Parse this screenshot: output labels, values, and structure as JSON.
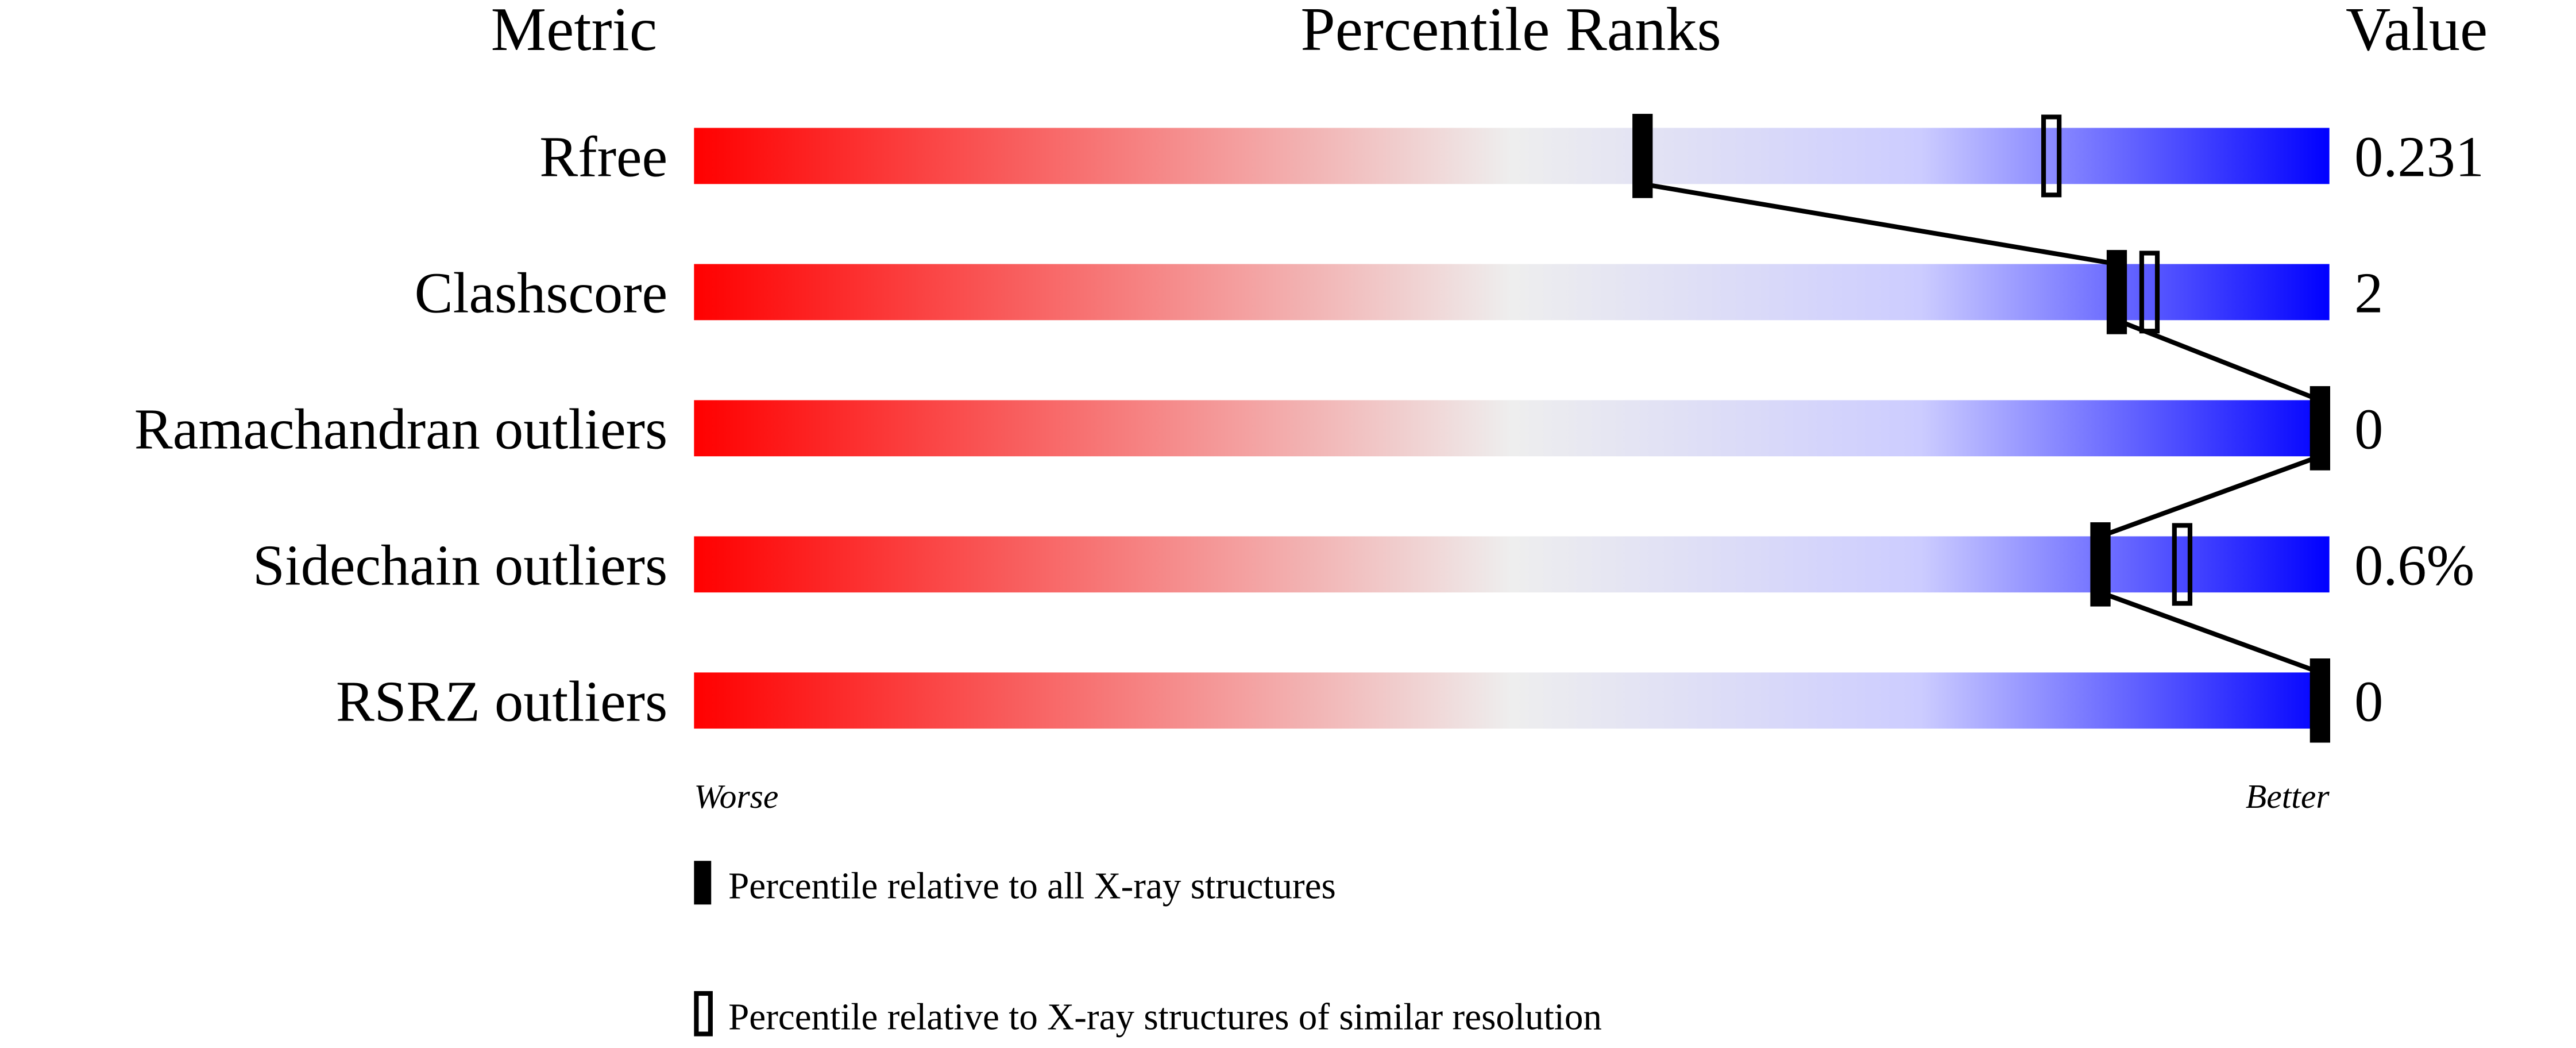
{
  "chart_data": {
    "type": "percentile-bar",
    "headers": {
      "metric": "Metric",
      "ranks": "Percentile Ranks",
      "value": "Value"
    },
    "xlim": [
      0,
      100
    ],
    "axis_labels": {
      "left": "Worse",
      "right": "Better"
    },
    "gradient_colors": [
      "#ff0000",
      "#eeeeee",
      "#ddddff",
      "#0000ff"
    ],
    "rows": [
      {
        "metric": "Rfree",
        "value": "0.231",
        "percentile_all": 58,
        "percentile_similar": 83
      },
      {
        "metric": "Clashscore",
        "value": "2",
        "percentile_all": 87,
        "percentile_similar": 89
      },
      {
        "metric": "Ramachandran outliers",
        "value": "0",
        "percentile_all": 100,
        "percentile_similar": null
      },
      {
        "metric": "Sidechain outliers",
        "value": "0.6%",
        "percentile_all": 86,
        "percentile_similar": 91
      },
      {
        "metric": "RSRZ outliers",
        "value": "0",
        "percentile_all": 100,
        "percentile_similar": null
      }
    ],
    "legend": [
      {
        "marker": "filled",
        "label": "Percentile relative to all X-ray structures"
      },
      {
        "marker": "open",
        "label": "Percentile relative to X-ray structures of similar resolution"
      }
    ]
  }
}
